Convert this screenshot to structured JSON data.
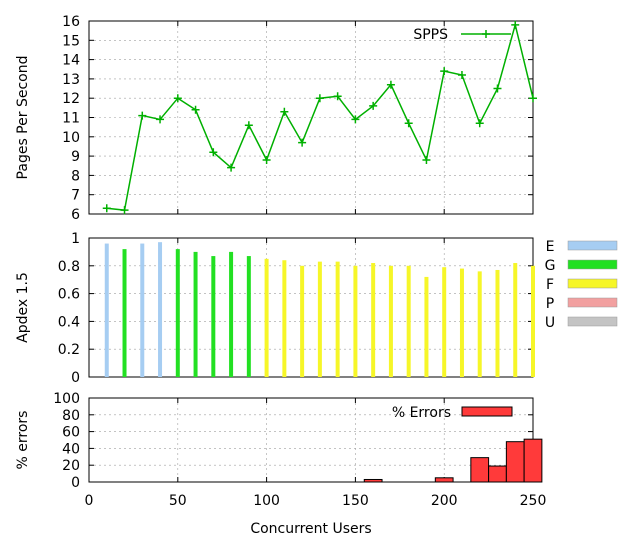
{
  "chart_data": [
    {
      "type": "line",
      "title": "",
      "xlabel": "",
      "ylabel": "Pages Per Second",
      "xlim": [
        0,
        250
      ],
      "ylim": [
        6,
        16
      ],
      "yticks": [
        6,
        7,
        8,
        9,
        10,
        11,
        12,
        13,
        14,
        15,
        16
      ],
      "grid": true,
      "legend": "top-right",
      "series": [
        {
          "name": "SPPS",
          "color": "#00b000",
          "x": [
            10,
            20,
            30,
            40,
            50,
            60,
            70,
            80,
            90,
            100,
            110,
            120,
            130,
            140,
            150,
            160,
            170,
            180,
            190,
            200,
            210,
            220,
            230,
            240,
            250
          ],
          "y": [
            6.3,
            6.2,
            11.1,
            10.9,
            12.0,
            11.4,
            9.2,
            8.4,
            10.6,
            8.8,
            11.3,
            9.7,
            12.0,
            12.1,
            10.9,
            11.6,
            12.7,
            10.7,
            8.8,
            13.4,
            13.2,
            10.7,
            12.5,
            15.8,
            12.0
          ]
        }
      ]
    },
    {
      "type": "bar",
      "title": "",
      "xlabel": "",
      "ylabel": "Apdex 1.5",
      "xlim": [
        0,
        250
      ],
      "ylim": [
        0,
        1
      ],
      "yticks": [
        "0",
        "0.2",
        "0.4",
        "0.6",
        "0.8",
        "1"
      ],
      "grid": true,
      "legend": "right",
      "legend_items": [
        {
          "label": "E",
          "color": "#a6cdf2"
        },
        {
          "label": "G",
          "color": "#22e022"
        },
        {
          "label": "F",
          "color": "#f6f628"
        },
        {
          "label": "P",
          "color": "#f2a0a0"
        },
        {
          "label": "U",
          "color": "#c4c4c4"
        }
      ],
      "x": [
        10,
        20,
        30,
        40,
        50,
        60,
        70,
        80,
        90,
        100,
        110,
        120,
        130,
        140,
        150,
        160,
        170,
        180,
        190,
        200,
        210,
        220,
        230,
        240,
        250
      ],
      "values": [
        0.96,
        0.92,
        0.96,
        0.97,
        0.92,
        0.9,
        0.87,
        0.9,
        0.87,
        0.85,
        0.84,
        0.8,
        0.83,
        0.83,
        0.8,
        0.82,
        0.8,
        0.8,
        0.72,
        0.79,
        0.78,
        0.76,
        0.77,
        0.82,
        0.8
      ],
      "rating": [
        "E",
        "G",
        "E",
        "E",
        "G",
        "G",
        "G",
        "G",
        "G",
        "F",
        "F",
        "F",
        "F",
        "F",
        "F",
        "F",
        "F",
        "F",
        "F",
        "F",
        "F",
        "F",
        "F",
        "F",
        "F"
      ]
    },
    {
      "type": "bar",
      "title": "",
      "xlabel": "Concurrent Users",
      "ylabel": "% errors",
      "xlim": [
        0,
        250
      ],
      "ylim": [
        0,
        100
      ],
      "yticks": [
        0,
        20,
        40,
        60,
        80,
        100
      ],
      "xticks": [
        0,
        50,
        100,
        150,
        200,
        250
      ],
      "grid": true,
      "legend": "top-right",
      "series": [
        {
          "name": "% Errors",
          "color": "#ff3a3a",
          "x": [
            160,
            200,
            220,
            230,
            240,
            250
          ],
          "values": [
            3,
            5,
            29,
            19,
            48,
            51
          ]
        }
      ]
    }
  ]
}
